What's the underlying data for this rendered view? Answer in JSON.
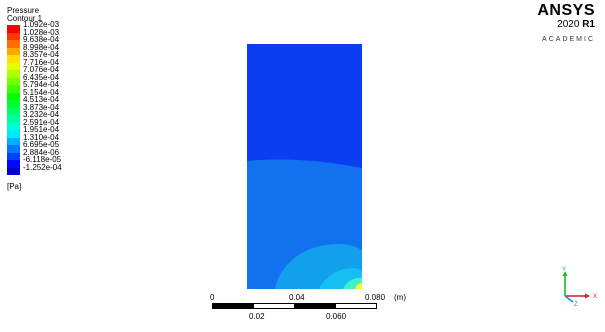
{
  "legend": {
    "title_line1": "Pressure",
    "title_line2": "Contour 1",
    "values": [
      "1.092e-03",
      "1.028e-03",
      "9.638e-04",
      "8.998e-04",
      "8.357e-04",
      "7.716e-04",
      "7.076e-04",
      "6.435e-04",
      "5.794e-04",
      "5.154e-04",
      "4.513e-04",
      "3.873e-04",
      "3.232e-04",
      "2.591e-04",
      "1.951e-04",
      "1.310e-04",
      "6.695e-05",
      "2.884e-06",
      "-6.118e-05",
      "-1.252e-04"
    ],
    "colors": [
      "#ff0000",
      "#ff3800",
      "#ff7000",
      "#ffa800",
      "#ffe000",
      "#e6ff00",
      "#aeff00",
      "#76ff00",
      "#3eff00",
      "#06ff00",
      "#00ff30",
      "#00ff68",
      "#00ffa0",
      "#00ffd8",
      "#00e8ff",
      "#00b0ff",
      "#0078ff",
      "#0040ff",
      "#0008ff",
      "#0000d0"
    ],
    "unit": "[Pa]"
  },
  "logo": {
    "name": "ANSYS",
    "version": "2020",
    "release": "R1",
    "edition": "ACADEMIC"
  },
  "plot": {
    "base_color": "#0a3ef0",
    "lower_color": "#1271ee",
    "mid_color": "#129fec",
    "near_color": "#16bff2",
    "corner_color": "#40f0c8",
    "hot_color": "#f0ff30"
  },
  "scale": {
    "top_ticks": [
      "0",
      "0.04",
      "0.080"
    ],
    "unit": "(m)",
    "bottom_ticks": [
      "0.02",
      "0.060"
    ]
  },
  "triad": {
    "y_label": "Y",
    "x_label": "X",
    "z_label": "Z",
    "y_color": "#1fb82a",
    "x_color": "#d02020",
    "z_color": "#1a8fd8"
  }
}
